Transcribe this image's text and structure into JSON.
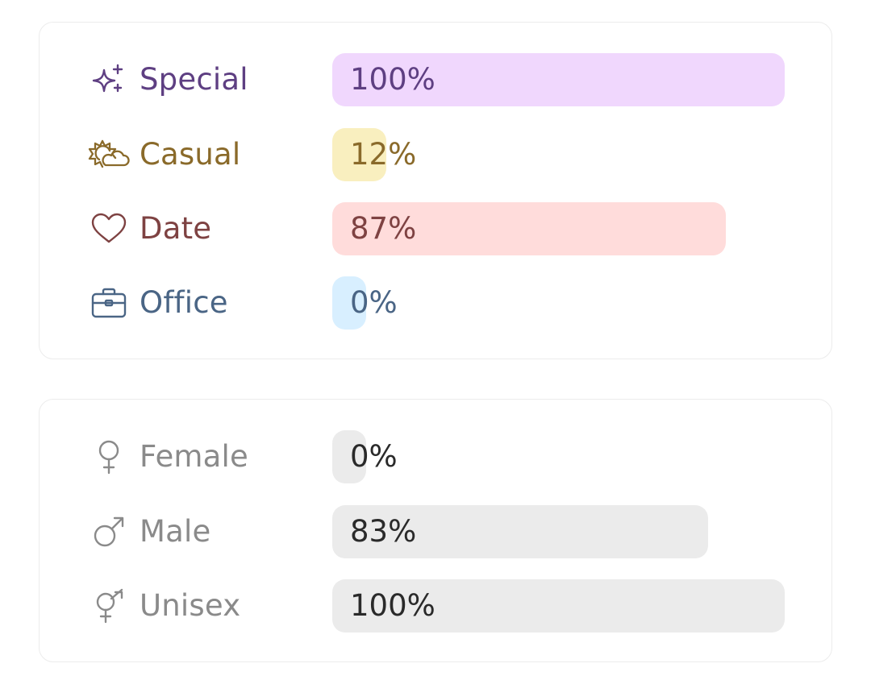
{
  "occasion": {
    "items": [
      {
        "label": "Special",
        "value": 100,
        "pct_label": "100%",
        "icon": "sparkles-icon",
        "color": "#5e3f82",
        "fill": "#f0d7fd"
      },
      {
        "label": "Casual",
        "value": 12,
        "pct_label": "12%",
        "icon": "sun-cloud-icon",
        "color": "#8a6a2a",
        "fill": "#f9efbf"
      },
      {
        "label": "Date",
        "value": 87,
        "pct_label": "87%",
        "icon": "heart-icon",
        "color": "#7e4242",
        "fill": "#ffdcdb"
      },
      {
        "label": "Office",
        "value": 0,
        "pct_label": "0%",
        "icon": "briefcase-icon",
        "color": "#4a6585",
        "fill": "#d8efff"
      }
    ]
  },
  "gender": {
    "items": [
      {
        "label": "Female",
        "value": 0,
        "pct_label": "0%",
        "icon": "female-symbol-icon",
        "color": "#8a8a8a",
        "fill": "#ebebeb"
      },
      {
        "label": "Male",
        "value": 83,
        "pct_label": "83%",
        "icon": "male-symbol-icon",
        "color": "#8a8a8a",
        "fill": "#ebebeb"
      },
      {
        "label": "Unisex",
        "value": 100,
        "pct_label": "100%",
        "icon": "unisex-symbol-icon",
        "color": "#8a8a8a",
        "fill": "#ebebeb"
      }
    ]
  },
  "colors": {
    "gender_pct_text": "#2a2a2a",
    "card_border": "#ececec"
  }
}
